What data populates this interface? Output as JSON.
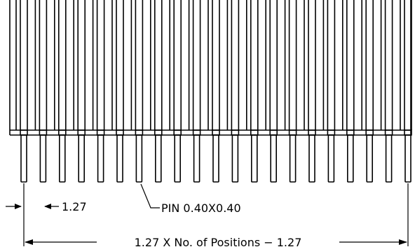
{
  "drawing": {
    "pin_pitch_label": "1.27",
    "pin_size_label": "PIN 0.40X0.40",
    "total_length_label": "1.27 X No. of Positions − 1.27",
    "pin_count": 21
  }
}
